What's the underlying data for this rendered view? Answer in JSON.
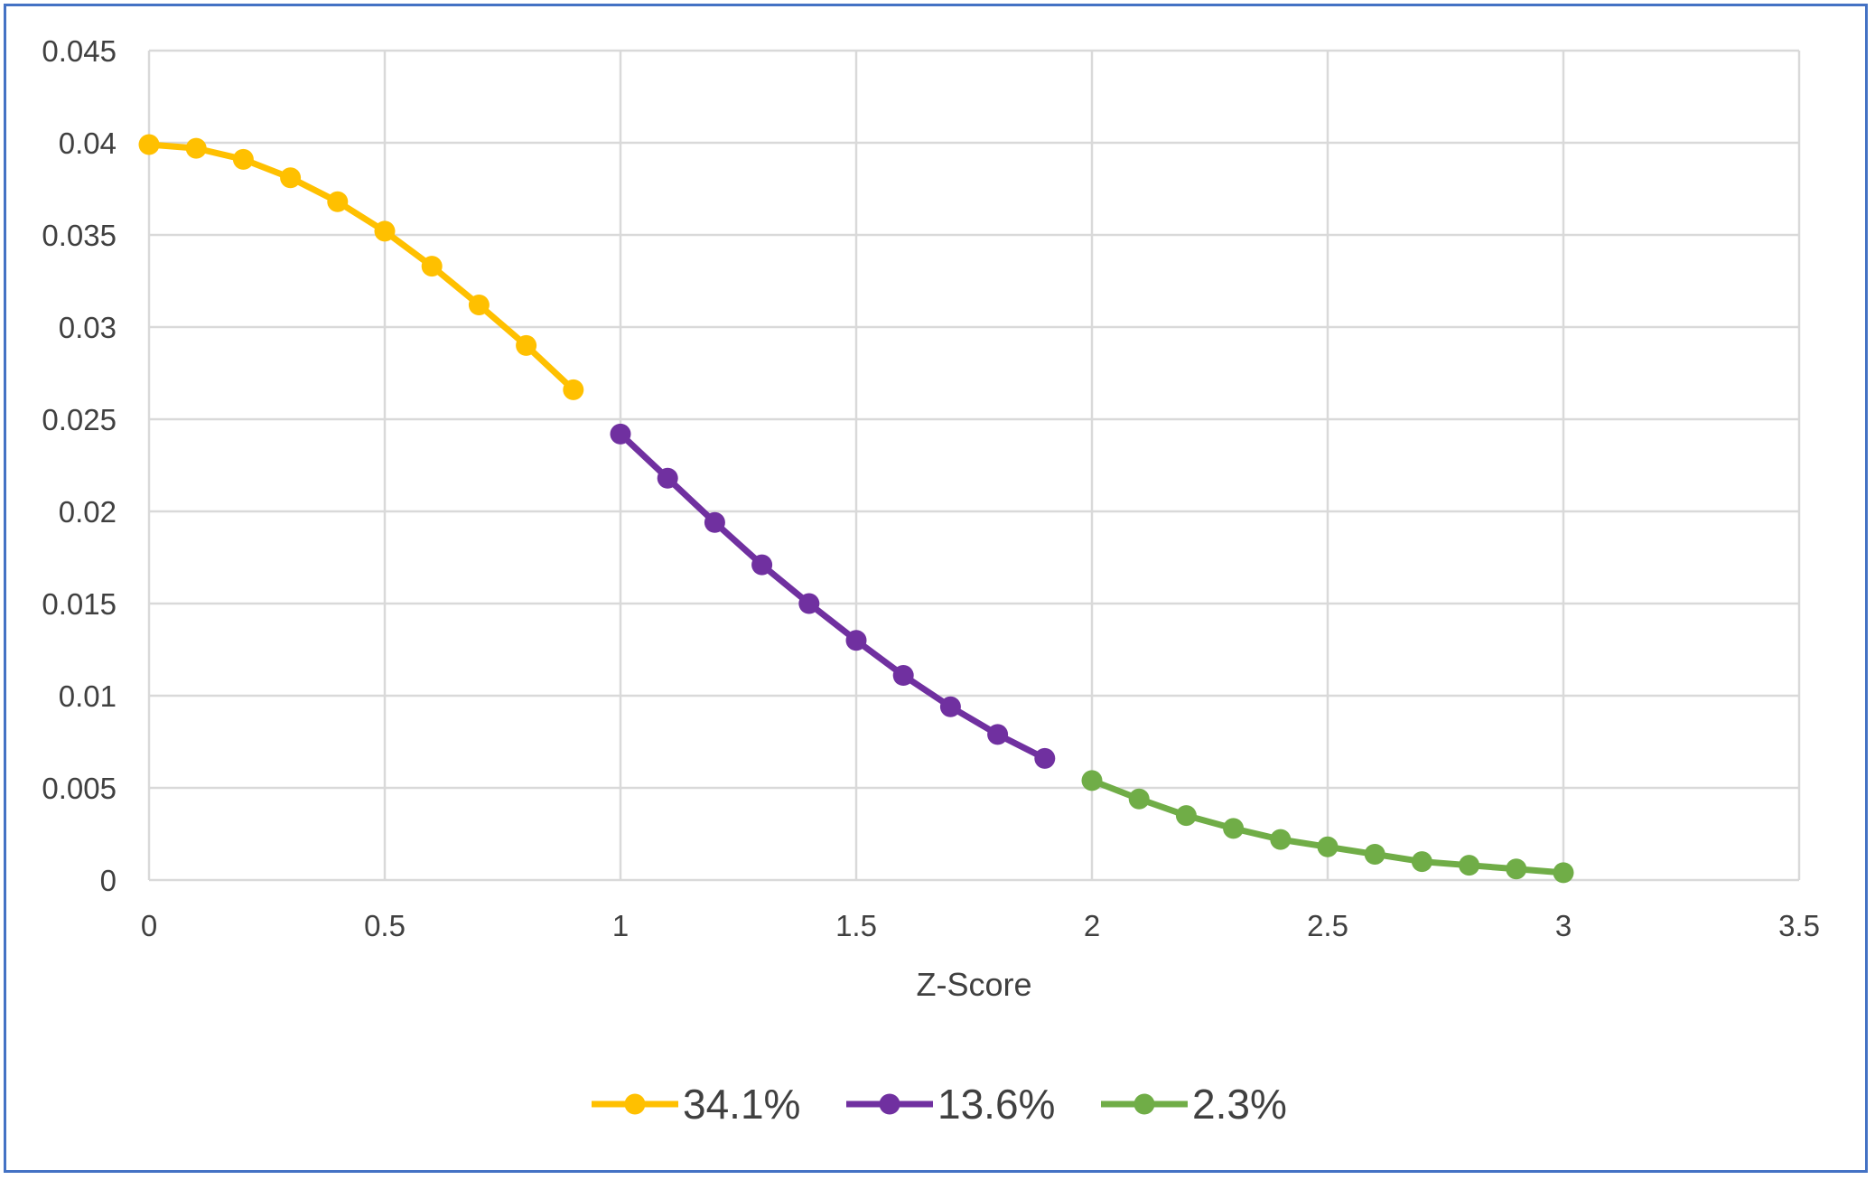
{
  "chart_data": {
    "type": "line",
    "title": "",
    "xlabel": "Z-Score",
    "ylabel": "",
    "xlim": [
      0,
      3.5
    ],
    "ylim": [
      0,
      0.045
    ],
    "x_ticks": [
      "0",
      "0.5",
      "1",
      "1.5",
      "2",
      "2.5",
      "3",
      "3.5"
    ],
    "y_ticks": [
      "0",
      "0.005",
      "0.01",
      "0.015",
      "0.02",
      "0.025",
      "0.03",
      "0.035",
      "0.04",
      "0.045"
    ],
    "grid": true,
    "legend_position": "bottom",
    "series": [
      {
        "name": "34.1%",
        "color": "#ffc000",
        "x": [
          0,
          0.1,
          0.2,
          0.3,
          0.4,
          0.5,
          0.6,
          0.7,
          0.8,
          0.9
        ],
        "y": [
          0.0399,
          0.0397,
          0.0391,
          0.0381,
          0.0368,
          0.0352,
          0.0333,
          0.0312,
          0.029,
          0.0266
        ]
      },
      {
        "name": "13.6%",
        "color": "#7030a0",
        "x": [
          1.0,
          1.1,
          1.2,
          1.3,
          1.4,
          1.5,
          1.6,
          1.7,
          1.8,
          1.9
        ],
        "y": [
          0.0242,
          0.0218,
          0.0194,
          0.0171,
          0.015,
          0.013,
          0.0111,
          0.0094,
          0.0079,
          0.0066
        ]
      },
      {
        "name": "2.3%",
        "color": "#70ad47",
        "x": [
          2.0,
          2.1,
          2.2,
          2.3,
          2.4,
          2.5,
          2.6,
          2.7,
          2.8,
          2.9,
          3.0
        ],
        "y": [
          0.0054,
          0.0044,
          0.0035,
          0.0028,
          0.0022,
          0.0018,
          0.0014,
          0.001,
          0.0008,
          0.0006,
          0.0004
        ]
      }
    ]
  }
}
